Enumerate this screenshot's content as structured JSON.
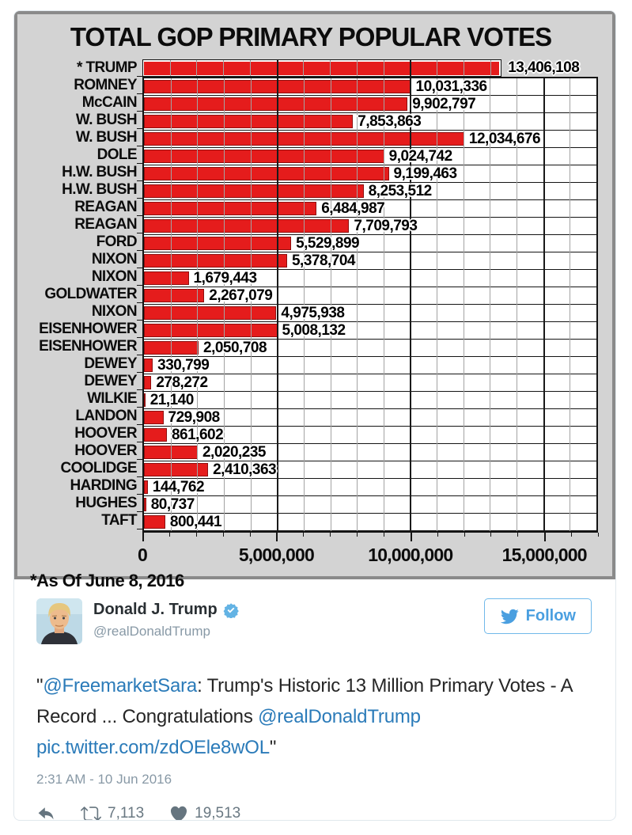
{
  "chart_data": {
    "type": "bar",
    "orientation": "horizontal",
    "title": "TOTAL GOP PRIMARY POPULAR VOTES",
    "footnote": "*As Of June 8, 2016",
    "categories": [
      "* TRUMP",
      "ROMNEY",
      "McCAIN",
      "W. BUSH",
      "W. BUSH",
      "DOLE",
      "H.W. BUSH",
      "H.W. BUSH",
      "REAGAN",
      "REAGAN",
      "FORD",
      "NIXON",
      "NIXON",
      "GOLDWATER",
      "NIXON",
      "EISENHOWER",
      "EISENHOWER",
      "DEWEY",
      "DEWEY",
      "WILKIE",
      "LANDON",
      "HOOVER",
      "HOOVER",
      "COOLIDGE",
      "HARDING",
      "HUGHES",
      "TAFT"
    ],
    "values": [
      13406108,
      10031336,
      9902797,
      7853863,
      12034676,
      9024742,
      9199463,
      8253512,
      6484987,
      7709793,
      5529899,
      5378704,
      1679443,
      2267079,
      4975938,
      5008132,
      2050708,
      330799,
      278272,
      21140,
      729908,
      861602,
      2020235,
      2410363,
      144762,
      80737,
      800441
    ],
    "value_labels": [
      "13,406,108",
      "10,031,336",
      "9,902,797",
      "7,853,863",
      "12,034,676",
      "9,024,742",
      "9,199,463",
      "8,253,512",
      "6,484,987",
      "7,709,793",
      "5,529,899",
      "5,378,704",
      "1,679,443",
      "2,267,079",
      "4,975,938",
      "5,008,132",
      "2,050,708",
      "330,799",
      "278,272",
      "21,140",
      "729,908",
      "861,602",
      "2,020,235",
      "2,410,363",
      "144,762",
      "80,737",
      "800,441"
    ],
    "x_ticks": [
      "0",
      "5,000,000",
      "10,000,000",
      "15,000,000"
    ],
    "x_tick_values": [
      0,
      5000000,
      10000000,
      15000000
    ],
    "xlim": [
      0,
      17000000
    ],
    "minor_grid_step": 1000000,
    "grid": true,
    "bar_color": "#e51c1c",
    "plot_bg": "#ffffff",
    "chart_bg": "#d3d3d3"
  },
  "tweet": {
    "name": "Donald J. Trump",
    "handle": "@realDonaldTrump",
    "verified": true,
    "follow_label": "Follow",
    "text_segments": [
      {
        "type": "text",
        "text": "\""
      },
      {
        "type": "mention",
        "text": "@FreemarketSara"
      },
      {
        "type": "text",
        "text": ": Trump's Historic 13 Million Primary Votes - A Record ... Congratulations "
      },
      {
        "type": "mention",
        "text": "@realDonaldTrump"
      },
      {
        "type": "text",
        "text": " "
      },
      {
        "type": "media",
        "text": "pic.twitter.com/zdOEle8wOL"
      },
      {
        "type": "text",
        "text": "\""
      }
    ],
    "timestamp": "2:31 AM - 10 Jun 2016",
    "retweet_count": "7,113",
    "like_count": "19,513",
    "colors": {
      "link": "#2b7bb9",
      "accent_blue": "#4a9fe0",
      "muted": "#8899a6",
      "icon": "#66757f",
      "text": "#292f33"
    }
  }
}
